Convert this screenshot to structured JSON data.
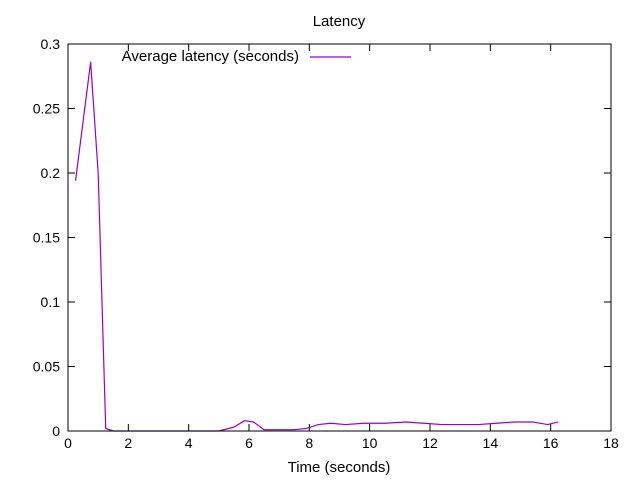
{
  "chart_data": {
    "type": "line",
    "title": "Latency",
    "xlabel": "Time (seconds)",
    "ylabel": "",
    "xlim": [
      0,
      18
    ],
    "ylim": [
      0,
      0.3
    ],
    "xticks": [
      0,
      2,
      4,
      6,
      8,
      10,
      12,
      14,
      16,
      18
    ],
    "yticks": [
      0,
      0.05,
      0.1,
      0.15,
      0.2,
      0.25,
      0.3
    ],
    "xtick_labels": [
      "0",
      "2",
      "4",
      "6",
      "8",
      "10",
      "12",
      "14",
      "16",
      "18"
    ],
    "ytick_labels": [
      "0",
      "0.05",
      "0.1",
      "0.15",
      "0.2",
      "0.25",
      "0.3"
    ],
    "grid": false,
    "legend_position": "top-left",
    "series": [
      {
        "name": "Average latency (seconds)",
        "color": "#9400d3",
        "x": [
          0.25,
          0.75,
          1.0,
          1.25,
          1.5,
          2.0,
          3.0,
          4.0,
          5.0,
          5.5,
          5.85,
          6.15,
          6.5,
          7.0,
          7.5,
          7.9,
          8.3,
          8.7,
          9.2,
          9.8,
          10.5,
          11.2,
          11.8,
          12.4,
          13.0,
          13.6,
          14.2,
          14.8,
          15.4,
          15.9,
          16.25
        ],
        "y": [
          0.194,
          0.286,
          0.2,
          0.002,
          0.0,
          0.0,
          0.0,
          0.0,
          0.0,
          0.003,
          0.008,
          0.007,
          0.001,
          0.001,
          0.001,
          0.002,
          0.005,
          0.006,
          0.005,
          0.006,
          0.006,
          0.007,
          0.006,
          0.005,
          0.005,
          0.005,
          0.006,
          0.007,
          0.007,
          0.005,
          0.007
        ]
      }
    ]
  }
}
